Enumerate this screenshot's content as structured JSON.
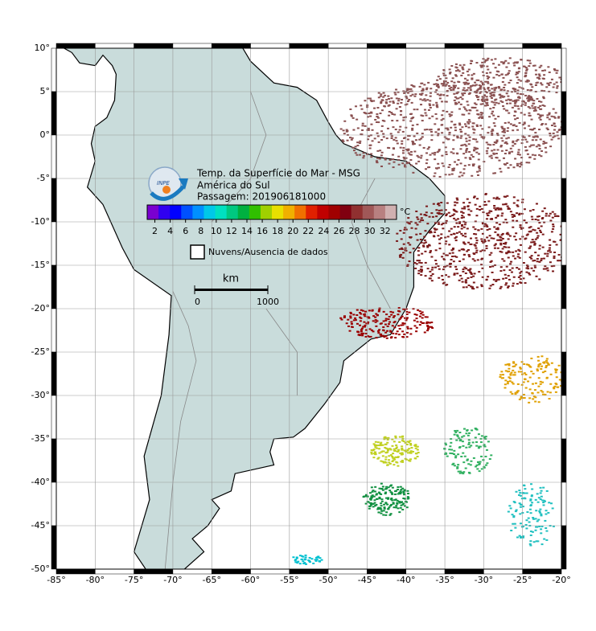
{
  "map": {
    "title_lines": [
      "Temp. da Superfície do Mar - MSG",
      "América do Sul",
      "Passagem: 201906181000"
    ],
    "logo_text": "INPE",
    "lonlim": [
      -85,
      -20
    ],
    "latlim": [
      -50,
      10
    ],
    "grid": true,
    "lonticks": [
      {
        "value": -85,
        "label": "-85°"
      },
      {
        "value": -80,
        "label": "-80°"
      },
      {
        "value": -75,
        "label": "-75°"
      },
      {
        "value": -70,
        "label": "-70°"
      },
      {
        "value": -65,
        "label": "-65°"
      },
      {
        "value": -60,
        "label": "-60°"
      },
      {
        "value": -55,
        "label": "-55°"
      },
      {
        "value": -50,
        "label": "-50°"
      },
      {
        "value": -45,
        "label": "-45°"
      },
      {
        "value": -40,
        "label": "-40°"
      },
      {
        "value": -35,
        "label": "-35°"
      },
      {
        "value": -30,
        "label": "-30°"
      },
      {
        "value": -25,
        "label": "-25°"
      },
      {
        "value": -20,
        "label": "-20°"
      }
    ],
    "latticks": [
      {
        "value": 10,
        "label": "10°"
      },
      {
        "value": 5,
        "label": "5°"
      },
      {
        "value": 0,
        "label": "0°"
      },
      {
        "value": -5,
        "label": "-5°"
      },
      {
        "value": -10,
        "label": "-10°"
      },
      {
        "value": -15,
        "label": "-15°"
      },
      {
        "value": -20,
        "label": "-20°"
      },
      {
        "value": -25,
        "label": "-25°"
      },
      {
        "value": -30,
        "label": "-30°"
      },
      {
        "value": -35,
        "label": "-35°"
      },
      {
        "value": -40,
        "label": "-40°"
      },
      {
        "value": -45,
        "label": "-45°"
      },
      {
        "value": -50,
        "label": "-50°"
      }
    ],
    "colorbar": {
      "unit": "°C",
      "clim": [
        1,
        33.5
      ],
      "ticks": [
        2,
        4,
        6,
        8,
        10,
        12,
        14,
        16,
        18,
        20,
        22,
        24,
        26,
        28,
        30,
        32
      ],
      "colors": [
        "#7a00d0",
        "#3000f0",
        "#0000ff",
        "#0050ff",
        "#0090ff",
        "#00c8e8",
        "#00e0c0",
        "#00c880",
        "#00b040",
        "#30c000",
        "#a0d000",
        "#e8e000",
        "#f0b000",
        "#f07000",
        "#e02000",
        "#c00000",
        "#a00000",
        "#800010",
        "#903030",
        "#a05858",
        "#b88080",
        "#d0b0b0"
      ]
    },
    "legend_label": "Nuvens/Ausencia de dados",
    "scale_bar": {
      "label": "km",
      "ticks": [
        0,
        1000
      ]
    }
  }
}
